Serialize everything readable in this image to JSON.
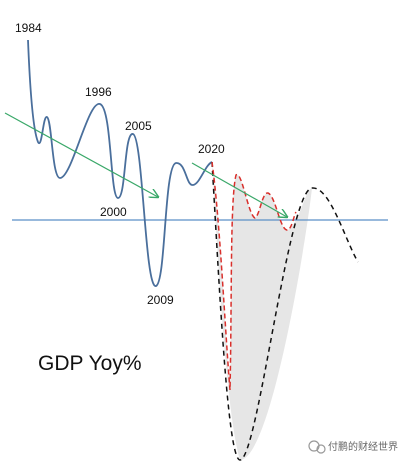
{
  "labels": {
    "y1984": "1984",
    "y1996": "1996",
    "y2005": "2005",
    "y2000": "2000",
    "y2009": "2009",
    "y2020": "2020"
  },
  "title": "GDP Yoy%",
  "watermark": "付鹏的财经世界"
}
